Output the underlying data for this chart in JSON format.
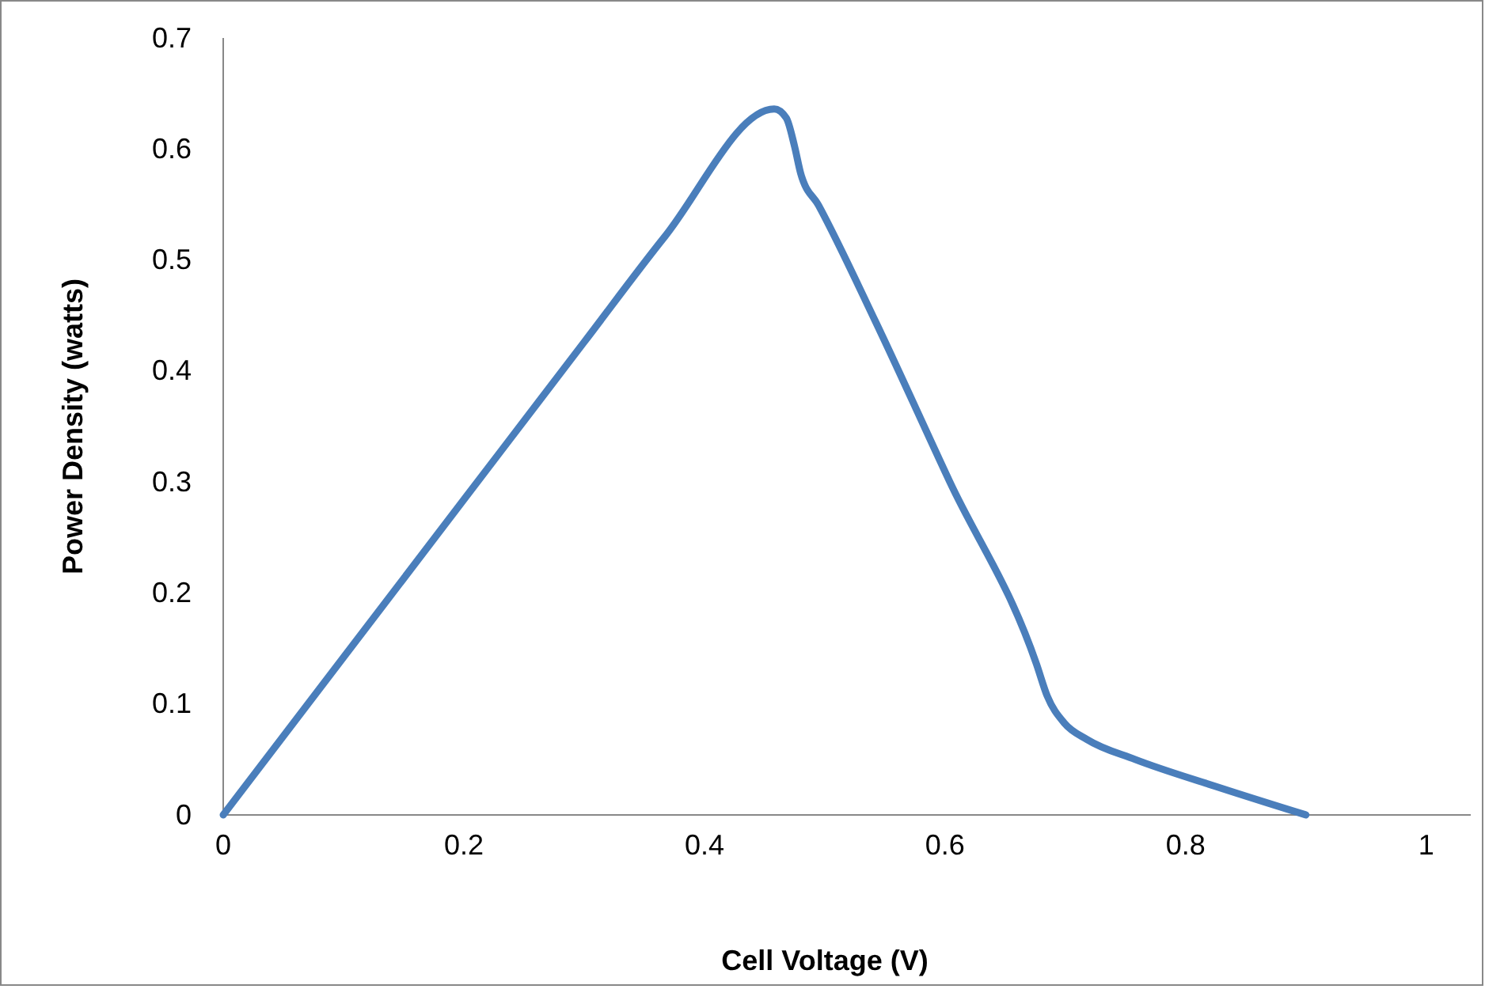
{
  "chart_data": {
    "type": "line",
    "xlabel": "Cell Voltage (V)",
    "ylabel": "Power Density (watts)",
    "series": [
      {
        "color": "#4a7ebb",
        "x": [
          0,
          0.1,
          0.2,
          0.3,
          0.367,
          0.458,
          0.468,
          0.475,
          0.48,
          0.495,
          0.542,
          0.604,
          0.676,
          0.685,
          0.699,
          0.718,
          0.758,
          0.824,
          0.9
        ],
        "values": [
          0,
          0.142,
          0.284,
          0.426,
          0.521,
          0.636,
          0.628,
          0.602,
          0.578,
          0.549,
          0.445,
          0.3,
          0.136,
          0.107,
          0.083,
          0.068,
          0.05,
          0.026,
          0
        ]
      }
    ],
    "xlim": [
      0,
      1.037
    ],
    "xticks": [
      0,
      0.2,
      0.4,
      0.6,
      0.8,
      1
    ],
    "ylim": [
      0,
      0.7
    ],
    "yticks": [
      0,
      0.1,
      0.2,
      0.3,
      0.4,
      0.5,
      0.6,
      0.7
    ],
    "grid": false,
    "marker": "none",
    "line_style": "solid"
  }
}
